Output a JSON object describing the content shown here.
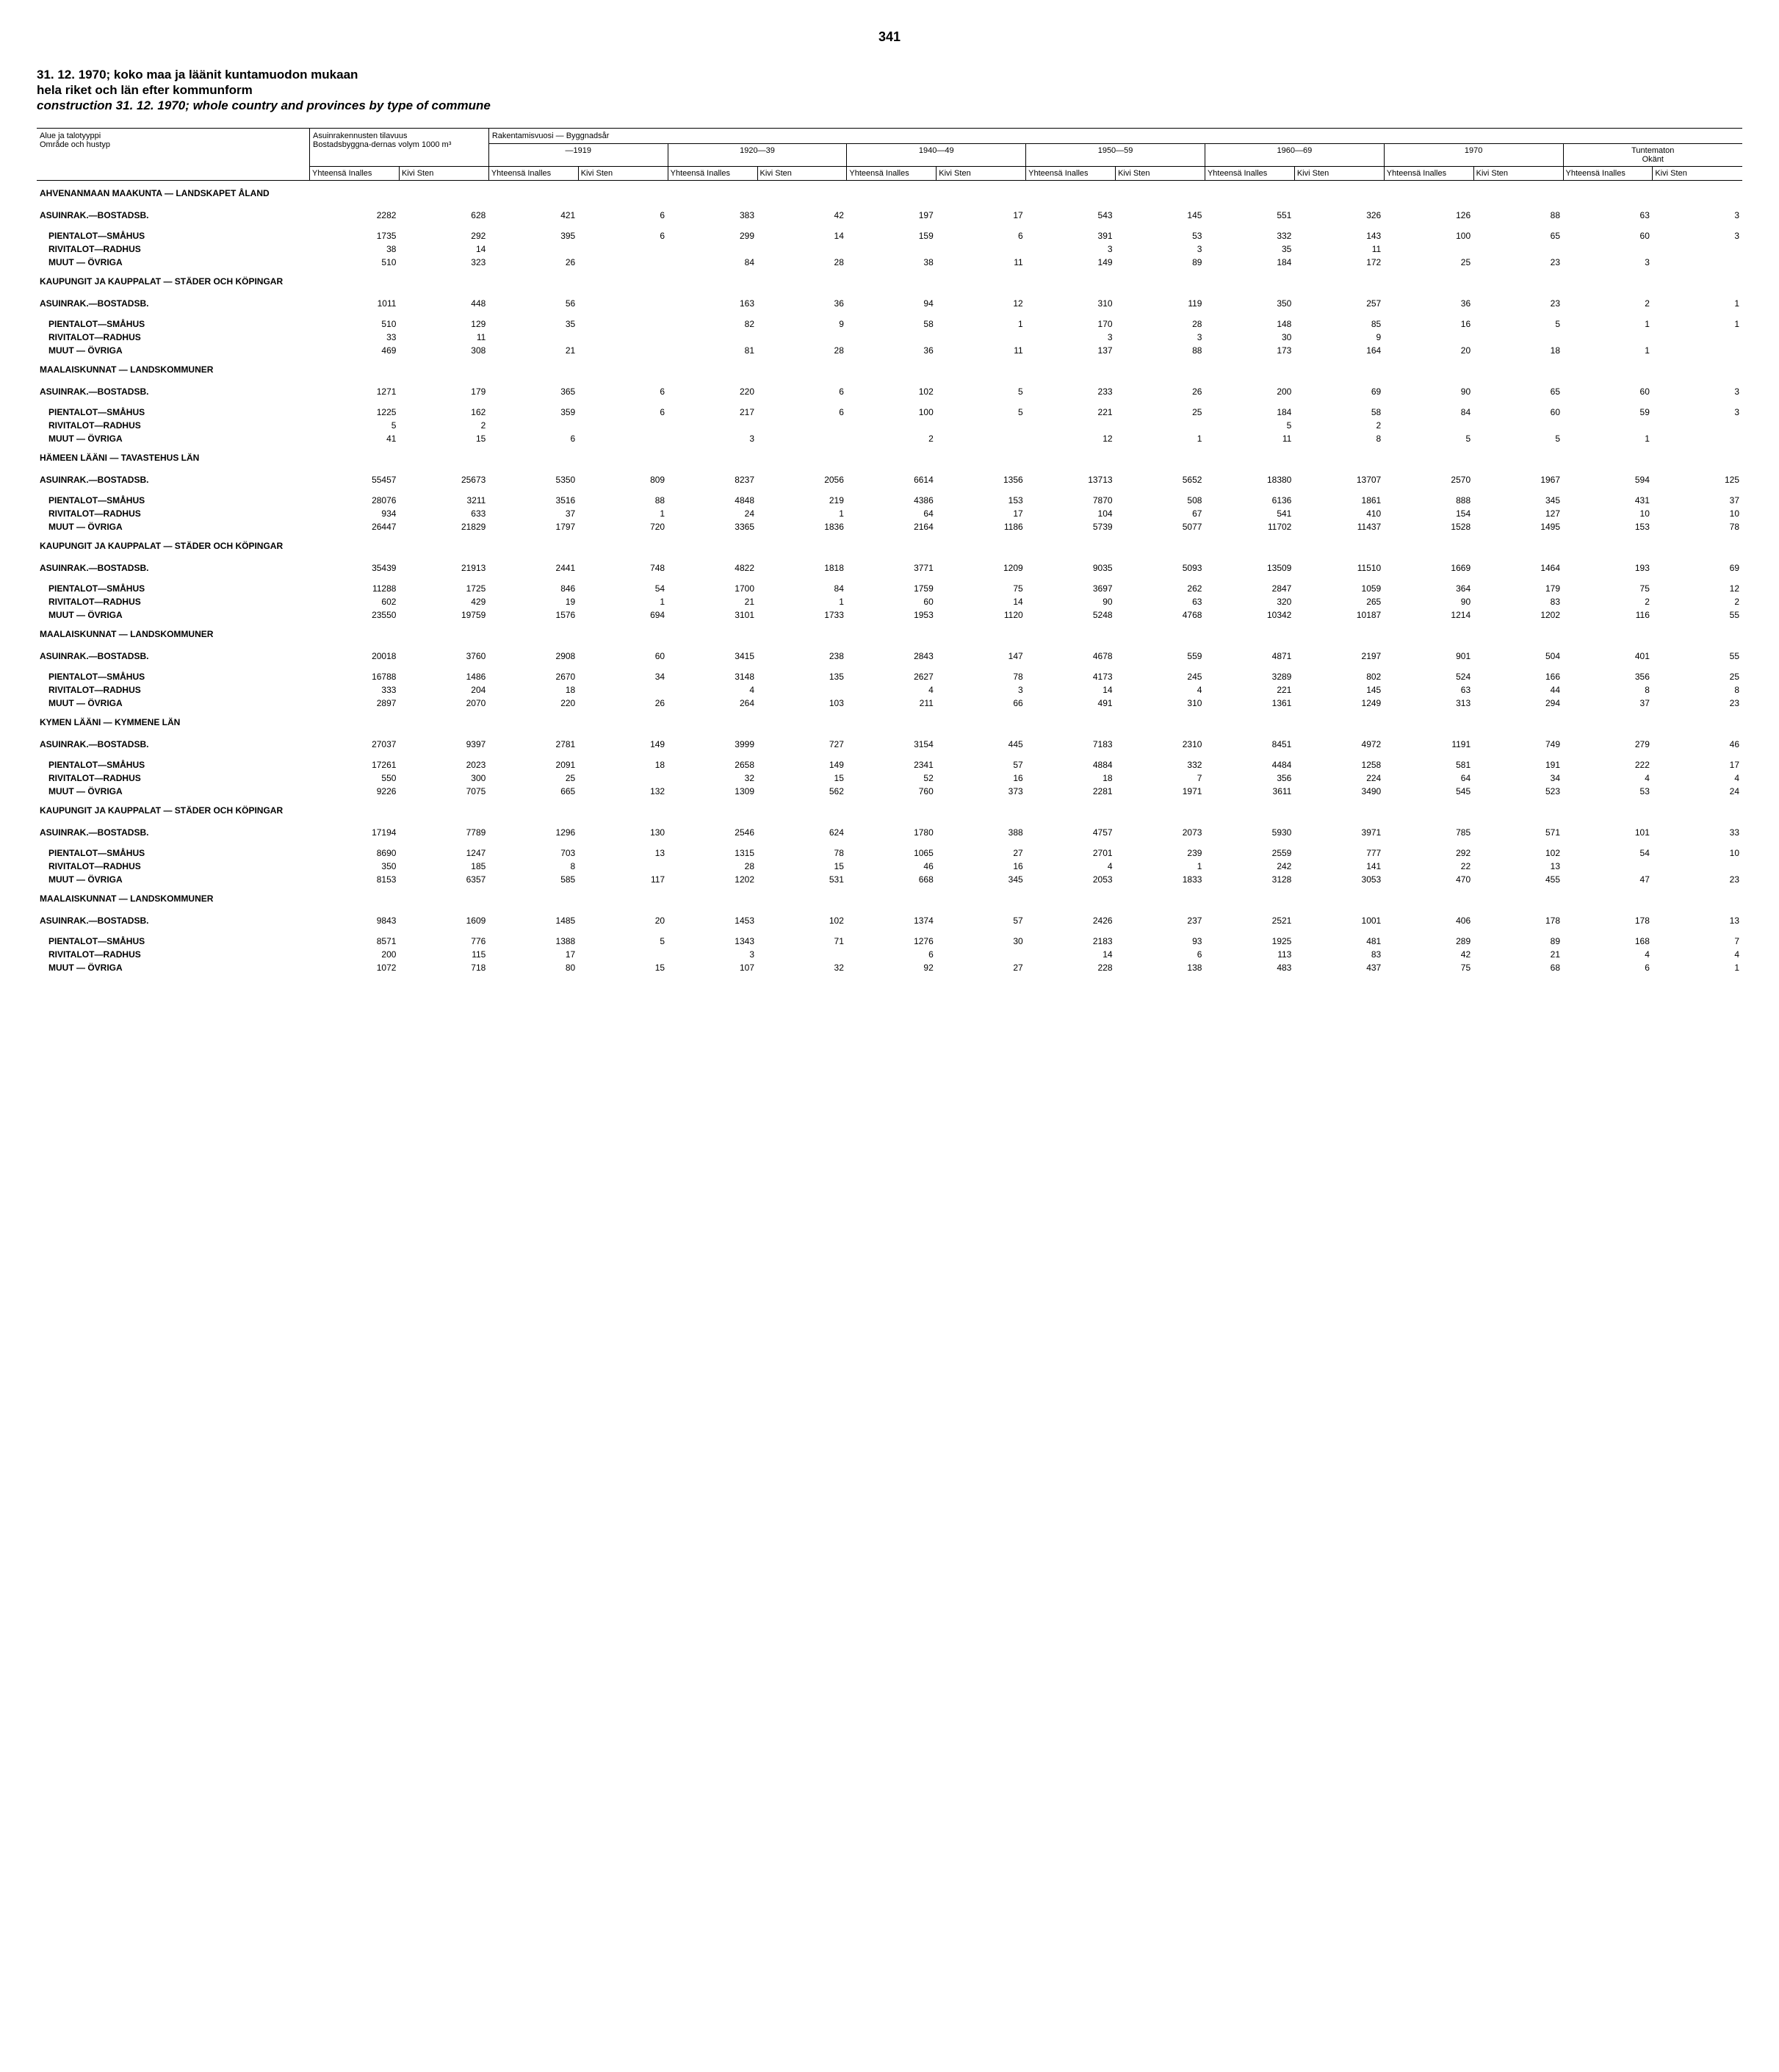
{
  "page_number": "341",
  "titles": {
    "fi": "31. 12. 1970; koko maa ja läänit kuntamuodon mukaan",
    "sv": "hela riket och län efter kommunform",
    "en": "construction 31. 12. 1970; whole country and provinces by type of commune"
  },
  "header": {
    "area_fi": "Alue ja talotyyppi",
    "area_sv": "Område och hustyp",
    "volume_fi": "Asuinrakennusten tilavuus",
    "volume_sv": "Bostadsbyggna-dernas volym 1000 m³",
    "year_label": "Rakentamisvuosi — Byggnadsår",
    "periods": [
      "—1919",
      "1920—39",
      "1940—49",
      "1950—59",
      "1960—69",
      "1970"
    ],
    "unknown_fi": "Tuntematon",
    "unknown_sv": "Okänt",
    "col_total": "Yhteensä Inalles",
    "col_stone": "Kivi Sten"
  },
  "row_labels": {
    "asuinrak": "ASUINRAK.—BOSTADSB.",
    "pientalot": "PIENTALOT—SMÅHUS",
    "rivitalot": "RIVITALOT—RADHUS",
    "muut": "MUUT — ÖVRIGA",
    "kaupungit": "KAUPUNGIT JA KAUPPALAT — STÄDER OCH KÖPINGAR",
    "maalaiskunnat": "MAALAISKUNNAT — LANDSKOMMUNER"
  },
  "sections": [
    {
      "title": "AHVENANMAAN MAAKUNTA — LANDSKAPET ÅLAND",
      "groups": [
        {
          "rows": [
            {
              "label": "asuinrak",
              "v": [
                "2282",
                "628",
                "421",
                "6",
                "383",
                "42",
                "197",
                "17",
                "543",
                "145",
                "551",
                "326",
                "126",
                "88",
                "63",
                "3"
              ]
            },
            {
              "label": "pientalot",
              "v": [
                "1735",
                "292",
                "395",
                "6",
                "299",
                "14",
                "159",
                "6",
                "391",
                "53",
                "332",
                "143",
                "100",
                "65",
                "60",
                "3"
              ]
            },
            {
              "label": "rivitalot",
              "v": [
                "38",
                "14",
                "",
                "",
                "",
                "",
                "",
                "",
                "3",
                "3",
                "35",
                "11",
                "",
                "",
                "",
                ""
              ]
            },
            {
              "label": "muut",
              "v": [
                "510",
                "323",
                "26",
                "",
                "84",
                "28",
                "38",
                "11",
                "149",
                "89",
                "184",
                "172",
                "25",
                "23",
                "3",
                ""
              ]
            }
          ]
        },
        {
          "subtitle": "kaupungit",
          "rows": [
            {
              "label": "asuinrak",
              "v": [
                "1011",
                "448",
                "56",
                "",
                "163",
                "36",
                "94",
                "12",
                "310",
                "119",
                "350",
                "257",
                "36",
                "23",
                "2",
                "1"
              ]
            },
            {
              "label": "pientalot",
              "v": [
                "510",
                "129",
                "35",
                "",
                "82",
                "9",
                "58",
                "1",
                "170",
                "28",
                "148",
                "85",
                "16",
                "5",
                "1",
                "1"
              ]
            },
            {
              "label": "rivitalot",
              "v": [
                "33",
                "11",
                "",
                "",
                "",
                "",
                "",
                "",
                "3",
                "3",
                "30",
                "9",
                "",
                "",
                "",
                ""
              ]
            },
            {
              "label": "muut",
              "v": [
                "469",
                "308",
                "21",
                "",
                "81",
                "28",
                "36",
                "11",
                "137",
                "88",
                "173",
                "164",
                "20",
                "18",
                "1",
                ""
              ]
            }
          ]
        },
        {
          "subtitle": "maalaiskunnat",
          "rows": [
            {
              "label": "asuinrak",
              "v": [
                "1271",
                "179",
                "365",
                "6",
                "220",
                "6",
                "102",
                "5",
                "233",
                "26",
                "200",
                "69",
                "90",
                "65",
                "60",
                "3"
              ]
            },
            {
              "label": "pientalot",
              "v": [
                "1225",
                "162",
                "359",
                "6",
                "217",
                "6",
                "100",
                "5",
                "221",
                "25",
                "184",
                "58",
                "84",
                "60",
                "59",
                "3"
              ]
            },
            {
              "label": "rivitalot",
              "v": [
                "5",
                "2",
                "",
                "",
                "",
                "",
                "",
                "",
                "",
                "",
                "5",
                "2",
                "",
                "",
                "",
                ""
              ]
            },
            {
              "label": "muut",
              "v": [
                "41",
                "15",
                "6",
                "",
                "3",
                "",
                "2",
                "",
                "12",
                "1",
                "11",
                "8",
                "5",
                "5",
                "1",
                ""
              ]
            }
          ]
        }
      ]
    },
    {
      "title": "HÄMEEN LÄÄNI — TAVASTEHUS LÄN",
      "groups": [
        {
          "rows": [
            {
              "label": "asuinrak",
              "v": [
                "55457",
                "25673",
                "5350",
                "809",
                "8237",
                "2056",
                "6614",
                "1356",
                "13713",
                "5652",
                "18380",
                "13707",
                "2570",
                "1967",
                "594",
                "125"
              ]
            },
            {
              "label": "pientalot",
              "v": [
                "28076",
                "3211",
                "3516",
                "88",
                "4848",
                "219",
                "4386",
                "153",
                "7870",
                "508",
                "6136",
                "1861",
                "888",
                "345",
                "431",
                "37"
              ]
            },
            {
              "label": "rivitalot",
              "v": [
                "934",
                "633",
                "37",
                "1",
                "24",
                "1",
                "64",
                "17",
                "104",
                "67",
                "541",
                "410",
                "154",
                "127",
                "10",
                "10"
              ]
            },
            {
              "label": "muut",
              "v": [
                "26447",
                "21829",
                "1797",
                "720",
                "3365",
                "1836",
                "2164",
                "1186",
                "5739",
                "5077",
                "11702",
                "11437",
                "1528",
                "1495",
                "153",
                "78"
              ]
            }
          ]
        },
        {
          "subtitle": "kaupungit",
          "rows": [
            {
              "label": "asuinrak",
              "v": [
                "35439",
                "21913",
                "2441",
                "748",
                "4822",
                "1818",
                "3771",
                "1209",
                "9035",
                "5093",
                "13509",
                "11510",
                "1669",
                "1464",
                "193",
                "69"
              ]
            },
            {
              "label": "pientalot",
              "v": [
                "11288",
                "1725",
                "846",
                "54",
                "1700",
                "84",
                "1759",
                "75",
                "3697",
                "262",
                "2847",
                "1059",
                "364",
                "179",
                "75",
                "12"
              ]
            },
            {
              "label": "rivitalot",
              "v": [
                "602",
                "429",
                "19",
                "1",
                "21",
                "1",
                "60",
                "14",
                "90",
                "63",
                "320",
                "265",
                "90",
                "83",
                "2",
                "2"
              ]
            },
            {
              "label": "muut",
              "v": [
                "23550",
                "19759",
                "1576",
                "694",
                "3101",
                "1733",
                "1953",
                "1120",
                "5248",
                "4768",
                "10342",
                "10187",
                "1214",
                "1202",
                "116",
                "55"
              ]
            }
          ]
        },
        {
          "subtitle": "maalaiskunnat",
          "rows": [
            {
              "label": "asuinrak",
              "v": [
                "20018",
                "3760",
                "2908",
                "60",
                "3415",
                "238",
                "2843",
                "147",
                "4678",
                "559",
                "4871",
                "2197",
                "901",
                "504",
                "401",
                "55"
              ]
            },
            {
              "label": "pientalot",
              "v": [
                "16788",
                "1486",
                "2670",
                "34",
                "3148",
                "135",
                "2627",
                "78",
                "4173",
                "245",
                "3289",
                "802",
                "524",
                "166",
                "356",
                "25"
              ]
            },
            {
              "label": "rivitalot",
              "v": [
                "333",
                "204",
                "18",
                "",
                "4",
                "",
                "4",
                "3",
                "14",
                "4",
                "221",
                "145",
                "63",
                "44",
                "8",
                "8"
              ]
            },
            {
              "label": "muut",
              "v": [
                "2897",
                "2070",
                "220",
                "26",
                "264",
                "103",
                "211",
                "66",
                "491",
                "310",
                "1361",
                "1249",
                "313",
                "294",
                "37",
                "23"
              ]
            }
          ]
        }
      ]
    },
    {
      "title": "KYMEN LÄÄNI — KYMMENE LÄN",
      "groups": [
        {
          "rows": [
            {
              "label": "asuinrak",
              "v": [
                "27037",
                "9397",
                "2781",
                "149",
                "3999",
                "727",
                "3154",
                "445",
                "7183",
                "2310",
                "8451",
                "4972",
                "1191",
                "749",
                "279",
                "46"
              ]
            },
            {
              "label": "pientalot",
              "v": [
                "17261",
                "2023",
                "2091",
                "18",
                "2658",
                "149",
                "2341",
                "57",
                "4884",
                "332",
                "4484",
                "1258",
                "581",
                "191",
                "222",
                "17"
              ]
            },
            {
              "label": "rivitalot",
              "v": [
                "550",
                "300",
                "25",
                "",
                "32",
                "15",
                "52",
                "16",
                "18",
                "7",
                "356",
                "224",
                "64",
                "34",
                "4",
                "4"
              ]
            },
            {
              "label": "muut",
              "v": [
                "9226",
                "7075",
                "665",
                "132",
                "1309",
                "562",
                "760",
                "373",
                "2281",
                "1971",
                "3611",
                "3490",
                "545",
                "523",
                "53",
                "24"
              ]
            }
          ]
        },
        {
          "subtitle": "kaupungit",
          "rows": [
            {
              "label": "asuinrak",
              "v": [
                "17194",
                "7789",
                "1296",
                "130",
                "2546",
                "624",
                "1780",
                "388",
                "4757",
                "2073",
                "5930",
                "3971",
                "785",
                "571",
                "101",
                "33"
              ]
            },
            {
              "label": "pientalot",
              "v": [
                "8690",
                "1247",
                "703",
                "13",
                "1315",
                "78",
                "1065",
                "27",
                "2701",
                "239",
                "2559",
                "777",
                "292",
                "102",
                "54",
                "10"
              ]
            },
            {
              "label": "rivitalot",
              "v": [
                "350",
                "185",
                "8",
                "",
                "28",
                "15",
                "46",
                "16",
                "4",
                "1",
                "242",
                "141",
                "22",
                "13",
                "",
                ""
              ]
            },
            {
              "label": "muut",
              "v": [
                "8153",
                "6357",
                "585",
                "117",
                "1202",
                "531",
                "668",
                "345",
                "2053",
                "1833",
                "3128",
                "3053",
                "470",
                "455",
                "47",
                "23"
              ]
            }
          ]
        },
        {
          "subtitle": "maalaiskunnat",
          "rows": [
            {
              "label": "asuinrak",
              "v": [
                "9843",
                "1609",
                "1485",
                "20",
                "1453",
                "102",
                "1374",
                "57",
                "2426",
                "237",
                "2521",
                "1001",
                "406",
                "178",
                "178",
                "13"
              ]
            },
            {
              "label": "pientalot",
              "v": [
                "8571",
                "776",
                "1388",
                "5",
                "1343",
                "71",
                "1276",
                "30",
                "2183",
                "93",
                "1925",
                "481",
                "289",
                "89",
                "168",
                "7"
              ]
            },
            {
              "label": "rivitalot",
              "v": [
                "200",
                "115",
                "17",
                "",
                "3",
                "",
                "6",
                "",
                "14",
                "6",
                "113",
                "83",
                "42",
                "21",
                "4",
                "4"
              ]
            },
            {
              "label": "muut",
              "v": [
                "1072",
                "718",
                "80",
                "15",
                "107",
                "32",
                "92",
                "27",
                "228",
                "138",
                "483",
                "437",
                "75",
                "68",
                "6",
                "1"
              ]
            }
          ]
        }
      ]
    }
  ]
}
